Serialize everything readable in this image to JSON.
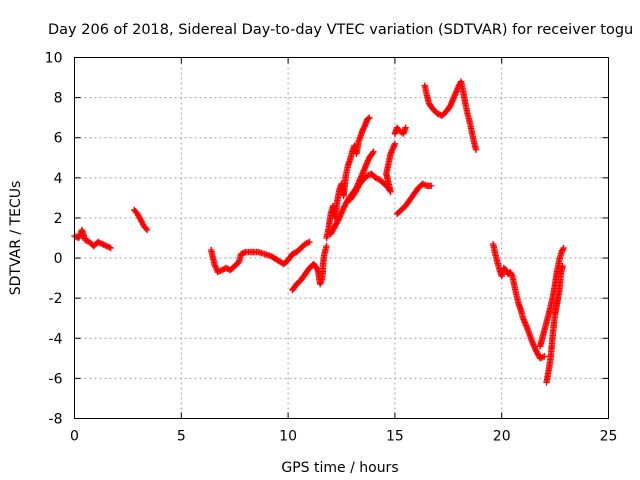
{
  "chart_data": {
    "type": "scatter",
    "title": "Day 206 of 2018, Sidereal Day-to-day VTEC variation (SDTVAR) for receiver togu",
    "xlabel": "GPS time / hours",
    "ylabel": "SDTVAR / TECUs",
    "xlim": [
      0,
      25
    ],
    "ylim": [
      -8,
      10
    ],
    "xticks": [
      "0",
      "5",
      "10",
      "15",
      "20",
      "25"
    ],
    "yticks": [
      "-8",
      "-6",
      "-4",
      "-2",
      "0",
      "2",
      "4",
      "6",
      "8",
      "10"
    ],
    "grid": true,
    "marker": "plus",
    "color": "#ff0000",
    "segments": [
      [
        [
          0.0,
          1.1
        ],
        [
          0.2,
          1.0
        ],
        [
          0.35,
          1.4
        ],
        [
          0.5,
          0.9
        ],
        [
          0.7,
          0.8
        ],
        [
          0.9,
          0.6
        ],
        [
          1.1,
          0.8
        ],
        [
          1.3,
          0.7
        ],
        [
          1.5,
          0.6
        ],
        [
          1.7,
          0.5
        ]
      ],
      [
        [
          2.8,
          2.4
        ],
        [
          2.95,
          2.2
        ],
        [
          3.1,
          1.9
        ],
        [
          3.25,
          1.6
        ],
        [
          3.4,
          1.4
        ]
      ],
      [
        [
          6.4,
          0.4
        ],
        [
          6.55,
          -0.3
        ],
        [
          6.7,
          -0.7
        ],
        [
          6.9,
          -0.6
        ],
        [
          7.1,
          -0.5
        ],
        [
          7.3,
          -0.6
        ],
        [
          7.5,
          -0.4
        ],
        [
          7.7,
          -0.2
        ],
        [
          7.8,
          0.2
        ],
        [
          8.0,
          0.3
        ],
        [
          8.3,
          0.3
        ],
        [
          8.6,
          0.3
        ],
        [
          8.9,
          0.2
        ],
        [
          9.2,
          0.1
        ],
        [
          9.5,
          -0.1
        ],
        [
          9.8,
          -0.3
        ],
        [
          10.0,
          -0.1
        ],
        [
          10.2,
          0.2
        ],
        [
          10.4,
          0.3
        ],
        [
          10.6,
          0.5
        ],
        [
          10.8,
          0.7
        ],
        [
          11.0,
          0.8
        ]
      ],
      [
        [
          10.2,
          -1.6
        ],
        [
          10.4,
          -1.3
        ],
        [
          10.6,
          -1.1
        ],
        [
          10.8,
          -0.8
        ],
        [
          11.0,
          -0.5
        ],
        [
          11.2,
          -0.3
        ],
        [
          11.4,
          -0.6
        ],
        [
          11.5,
          -1.3
        ],
        [
          11.6,
          -1.0
        ],
        [
          11.65,
          -0.2
        ],
        [
          11.7,
          0.2
        ],
        [
          11.8,
          0.6
        ]
      ],
      [
        [
          11.8,
          1.0
        ],
        [
          11.9,
          1.5
        ],
        [
          12.0,
          2.2
        ],
        [
          12.1,
          2.6
        ],
        [
          12.2,
          2.0
        ],
        [
          12.3,
          2.8
        ],
        [
          12.4,
          3.4
        ],
        [
          12.5,
          3.7
        ],
        [
          12.6,
          3.1
        ],
        [
          12.7,
          4.1
        ],
        [
          12.8,
          4.6
        ],
        [
          12.9,
          4.9
        ],
        [
          13.0,
          5.3
        ],
        [
          13.1,
          5.6
        ],
        [
          13.2,
          5.2
        ],
        [
          13.3,
          5.8
        ],
        [
          13.4,
          6.1
        ],
        [
          13.5,
          6.4
        ],
        [
          13.6,
          6.6
        ],
        [
          13.7,
          6.9
        ],
        [
          13.8,
          7.0
        ]
      ],
      [
        [
          12.0,
          1.2
        ],
        [
          12.2,
          1.6
        ],
        [
          12.4,
          2.0
        ],
        [
          12.6,
          2.5
        ],
        [
          12.8,
          2.9
        ],
        [
          13.0,
          3.2
        ],
        [
          13.2,
          3.5
        ],
        [
          13.4,
          4.0
        ],
        [
          13.6,
          4.5
        ],
        [
          13.8,
          5.0
        ],
        [
          14.0,
          5.3
        ]
      ],
      [
        [
          12.9,
          2.9
        ],
        [
          13.1,
          3.2
        ],
        [
          13.3,
          3.6
        ],
        [
          13.5,
          3.9
        ],
        [
          13.7,
          4.1
        ],
        [
          13.9,
          4.2
        ],
        [
          14.1,
          4.0
        ],
        [
          14.3,
          3.9
        ],
        [
          14.5,
          3.7
        ],
        [
          14.7,
          3.5
        ],
        [
          14.8,
          3.3
        ],
        [
          14.6,
          4.2
        ],
        [
          14.8,
          5.2
        ],
        [
          15.0,
          5.7
        ]
      ],
      [
        [
          15.0,
          6.2
        ],
        [
          15.1,
          6.5
        ],
        [
          15.25,
          6.3
        ],
        [
          15.4,
          6.2
        ],
        [
          15.5,
          6.5
        ]
      ],
      [
        [
          15.1,
          2.2
        ],
        [
          15.3,
          2.4
        ],
        [
          15.5,
          2.6
        ],
        [
          15.7,
          2.9
        ],
        [
          15.9,
          3.2
        ],
        [
          16.1,
          3.5
        ],
        [
          16.3,
          3.7
        ],
        [
          16.5,
          3.6
        ],
        [
          16.7,
          3.6
        ]
      ],
      [
        [
          16.4,
          8.6
        ],
        [
          16.5,
          8.1
        ],
        [
          16.6,
          7.7
        ],
        [
          16.8,
          7.4
        ],
        [
          17.0,
          7.2
        ],
        [
          17.2,
          7.1
        ],
        [
          17.4,
          7.3
        ],
        [
          17.6,
          7.6
        ],
        [
          17.8,
          8.1
        ],
        [
          18.0,
          8.6
        ],
        [
          18.1,
          8.8
        ],
        [
          18.2,
          8.3
        ],
        [
          18.3,
          7.7
        ],
        [
          18.4,
          7.2
        ],
        [
          18.5,
          6.8
        ],
        [
          18.6,
          6.3
        ],
        [
          18.7,
          5.8
        ],
        [
          18.8,
          5.4
        ]
      ],
      [
        [
          19.6,
          0.7
        ],
        [
          19.7,
          0.2
        ],
        [
          19.8,
          -0.2
        ],
        [
          19.9,
          -0.6
        ],
        [
          20.0,
          -0.9
        ],
        [
          20.1,
          -0.5
        ],
        [
          20.2,
          -0.6
        ],
        [
          20.3,
          -0.8
        ],
        [
          20.4,
          -0.7
        ],
        [
          20.5,
          -0.9
        ],
        [
          20.6,
          -1.4
        ],
        [
          20.7,
          -1.9
        ],
        [
          20.8,
          -2.3
        ],
        [
          20.9,
          -2.6
        ],
        [
          21.0,
          -3.0
        ],
        [
          21.2,
          -3.5
        ],
        [
          21.4,
          -4.1
        ],
        [
          21.6,
          -4.6
        ],
        [
          21.8,
          -5.0
        ],
        [
          22.0,
          -4.9
        ]
      ],
      [
        [
          22.1,
          -6.2
        ],
        [
          22.2,
          -5.6
        ],
        [
          22.3,
          -4.9
        ],
        [
          22.4,
          -3.7
        ],
        [
          22.5,
          -2.8
        ],
        [
          22.6,
          -2.2
        ],
        [
          22.7,
          -1.6
        ],
        [
          22.75,
          -1.0
        ],
        [
          22.8,
          -0.6
        ],
        [
          22.85,
          -0.4
        ]
      ],
      [
        [
          21.8,
          -4.4
        ],
        [
          21.95,
          -3.8
        ],
        [
          22.1,
          -3.2
        ],
        [
          22.25,
          -2.6
        ],
        [
          22.4,
          -1.9
        ],
        [
          22.5,
          -1.3
        ],
        [
          22.6,
          -0.6
        ],
        [
          22.7,
          -0.1
        ],
        [
          22.8,
          0.3
        ],
        [
          22.9,
          0.5
        ]
      ]
    ]
  }
}
